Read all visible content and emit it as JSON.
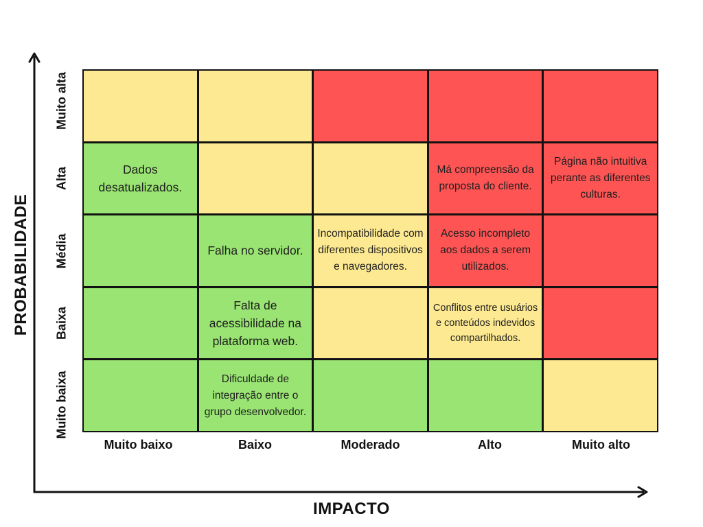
{
  "axes": {
    "x_title": "IMPACTO",
    "y_title": "PROBABILIDADE",
    "x_levels": [
      "Muito baixo",
      "Baixo",
      "Moderado",
      "Alto",
      "Muito alto"
    ],
    "y_levels": [
      "Muito alta",
      "Alta",
      "Média",
      "Baixa",
      "Muito baixa"
    ]
  },
  "colors": {
    "green": "#99e472",
    "yellow": "#fde992",
    "red": "#fe5454"
  },
  "matrix": [
    [
      {
        "color": "yellow",
        "text": ""
      },
      {
        "color": "yellow",
        "text": ""
      },
      {
        "color": "red",
        "text": ""
      },
      {
        "color": "red",
        "text": ""
      },
      {
        "color": "red",
        "text": ""
      }
    ],
    [
      {
        "color": "green",
        "text": "Dados desatualizados.",
        "size": "large"
      },
      {
        "color": "yellow",
        "text": ""
      },
      {
        "color": "yellow",
        "text": ""
      },
      {
        "color": "red",
        "text": "Má compreensão da proposta do cliente."
      },
      {
        "color": "red",
        "text": "Página não intuitiva perante as diferentes culturas."
      }
    ],
    [
      {
        "color": "green",
        "text": ""
      },
      {
        "color": "green",
        "text": "Falha no servidor.",
        "size": "large"
      },
      {
        "color": "yellow",
        "text": "Incompatibilidade com diferentes dispositivos e navegadores."
      },
      {
        "color": "red",
        "text": "Acesso incompleto aos dados a serem utilizados."
      },
      {
        "color": "red",
        "text": ""
      }
    ],
    [
      {
        "color": "green",
        "text": ""
      },
      {
        "color": "green",
        "text": "Falta de acessibilidade na plataforma web.",
        "size": "large"
      },
      {
        "color": "yellow",
        "text": ""
      },
      {
        "color": "yellow",
        "text": "Conflitos entre usuários e conteúdos indevidos compartilhados.",
        "size": "small"
      },
      {
        "color": "red",
        "text": ""
      }
    ],
    [
      {
        "color": "green",
        "text": ""
      },
      {
        "color": "green",
        "text": "Dificuldade de integração entre o grupo desenvolvedor."
      },
      {
        "color": "green",
        "text": ""
      },
      {
        "color": "green",
        "text": ""
      },
      {
        "color": "yellow",
        "text": ""
      }
    ]
  ]
}
